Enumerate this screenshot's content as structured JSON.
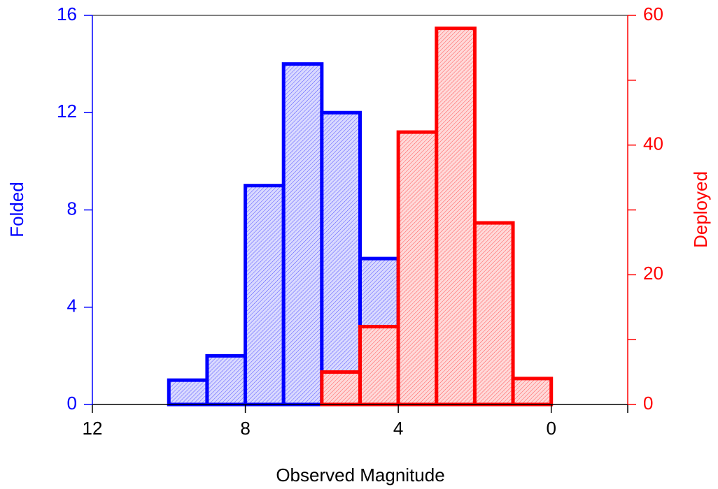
{
  "chart_data": {
    "type": "histogram",
    "xlabel": "Observed Magnitude",
    "xlim": [
      12,
      -2
    ],
    "xticks": [
      12,
      8,
      4,
      0
    ],
    "ylim": [
      0,
      16
    ],
    "yticks": [
      0,
      4,
      8,
      12,
      16
    ],
    "y2lim": [
      0,
      60
    ],
    "y2ticks": [
      0,
      20,
      40,
      60
    ],
    "y2minor_ticks": [
      10,
      30,
      50
    ],
    "series": [
      {
        "name": "Folded",
        "color": "#0000ff",
        "bins": [
          10,
          9,
          8,
          7,
          6,
          5,
          4
        ],
        "values": [
          1,
          2,
          9,
          14,
          12,
          6
        ]
      },
      {
        "name": "Deployed",
        "color": "#ff0000",
        "axis": "y2",
        "bins": [
          6,
          5,
          4,
          3,
          2,
          1,
          0
        ],
        "values": [
          5,
          12,
          42,
          58,
          28,
          4
        ]
      }
    ]
  }
}
